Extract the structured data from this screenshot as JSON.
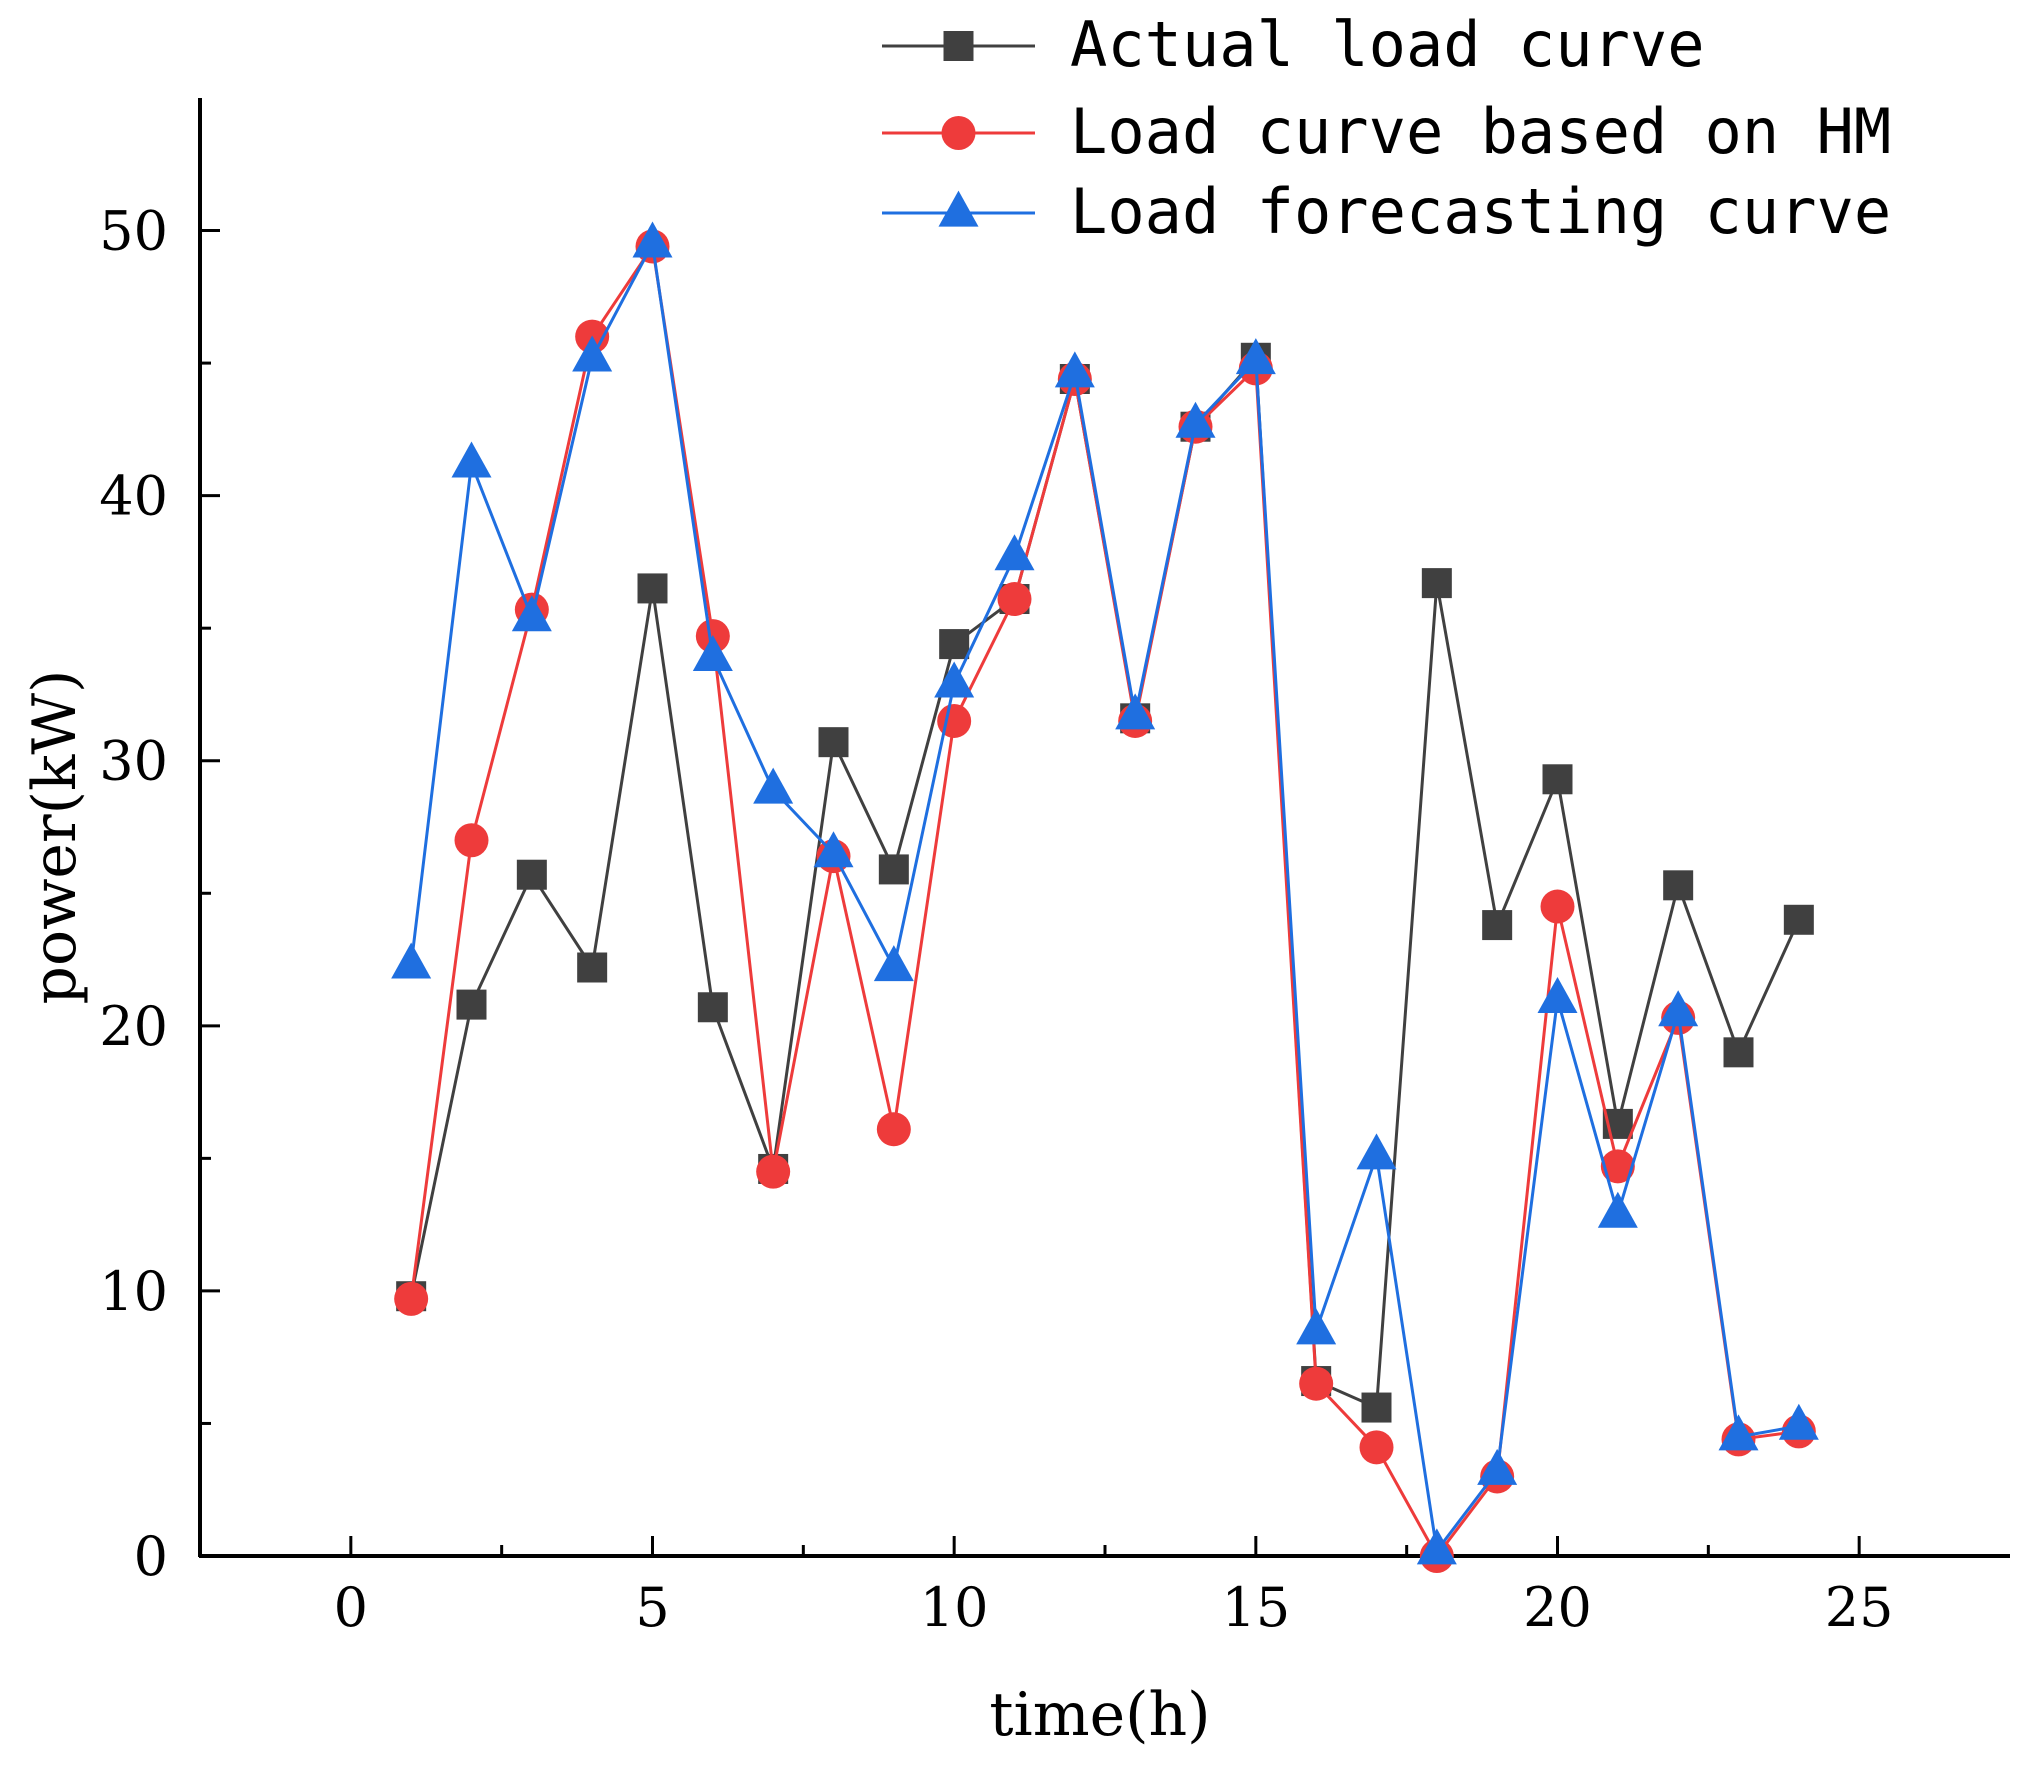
{
  "chart_data": {
    "type": "line",
    "title": "",
    "xlabel": "time(h)",
    "ylabel": "power(kW)",
    "xlim": [
      -2.5,
      27.5
    ],
    "ylim": [
      0,
      55
    ],
    "grid": false,
    "legend_position": "top-right",
    "x_ticks": [
      0,
      5,
      10,
      15,
      20,
      25
    ],
    "y_ticks": [
      0,
      10,
      20,
      30,
      40,
      50
    ],
    "x": [
      1,
      2,
      3,
      4,
      5,
      6,
      7,
      8,
      9,
      10,
      11,
      12,
      13,
      14,
      15,
      16,
      17,
      18,
      19,
      20,
      21,
      22,
      23,
      24
    ],
    "series": [
      {
        "name": "Actual load curve",
        "color": "#404040",
        "marker": "square",
        "values": [
          9.8,
          20.8,
          25.7,
          22.2,
          36.5,
          20.7,
          14.6,
          30.7,
          25.9,
          34.4,
          36.1,
          44.4,
          31.6,
          42.6,
          45.2,
          6.6,
          5.6,
          36.7,
          23.8,
          29.3,
          16.3,
          25.3,
          19.0,
          24.0
        ]
      },
      {
        "name": "Load curve based on HM",
        "color": "#EE3B3B",
        "marker": "circle",
        "values": [
          9.7,
          27.0,
          35.7,
          46.0,
          49.4,
          34.7,
          14.5,
          26.4,
          16.1,
          31.5,
          36.1,
          44.4,
          31.5,
          42.6,
          44.8,
          6.5,
          4.1,
          0.0,
          3.0,
          24.5,
          14.7,
          20.3,
          4.4,
          4.7
        ]
      },
      {
        "name": "Load forecasting curve",
        "color": "#1F6FE0",
        "marker": "triangle",
        "values": [
          22.3,
          41.2,
          35.4,
          45.2,
          49.5,
          33.9,
          28.9,
          26.5,
          22.2,
          32.9,
          37.7,
          44.6,
          31.7,
          42.7,
          45.1,
          8.5,
          15.1,
          0.2,
          3.2,
          21.0,
          12.9,
          20.5,
          4.5,
          4.9
        ]
      }
    ]
  }
}
